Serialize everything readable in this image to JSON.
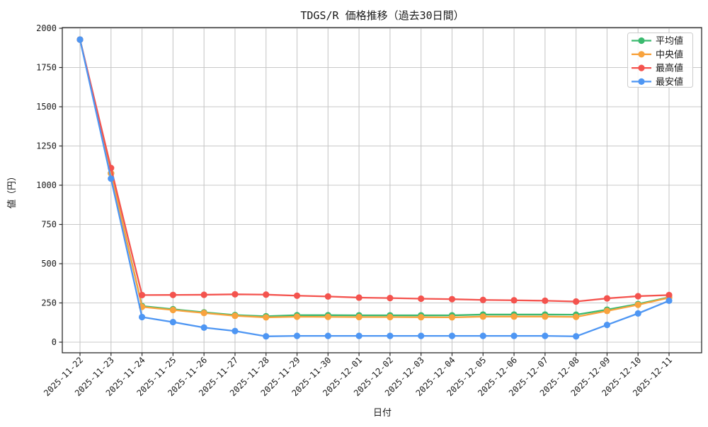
{
  "chart_data": {
    "type": "line",
    "title": "TDGS/R 価格推移（過去30日間）",
    "xlabel": "日付",
    "ylabel": "値（円）",
    "categories": [
      "2025-11-22",
      "2025-11-23",
      "2025-11-24",
      "2025-11-25",
      "2025-11-26",
      "2025-11-27",
      "2025-11-28",
      "2025-11-29",
      "2025-11-30",
      "2025-12-01",
      "2025-12-02",
      "2025-12-03",
      "2025-12-04",
      "2025-12-05",
      "2025-12-06",
      "2025-12-07",
      "2025-12-08",
      "2025-12-09",
      "2025-12-10",
      "2025-12-11"
    ],
    "series": [
      {
        "name": "平均値",
        "color": "#3bba6f",
        "values": [
          1928,
          1076,
          230,
          210,
          190,
          173,
          165,
          172,
          172,
          171,
          171,
          171,
          171,
          176,
          176,
          176,
          175,
          207,
          243,
          286
        ]
      },
      {
        "name": "中央値",
        "color": "#f8a33e",
        "values": [
          1928,
          1076,
          225,
          205,
          186,
          168,
          158,
          162,
          161,
          160,
          160,
          159,
          158,
          163,
          163,
          163,
          161,
          199,
          238,
          283
        ]
      },
      {
        "name": "最高値",
        "color": "#f4534e",
        "values": [
          1928,
          1110,
          300,
          301,
          302,
          305,
          303,
          296,
          291,
          284,
          281,
          277,
          274,
          269,
          267,
          264,
          259,
          279,
          293,
          300
        ]
      },
      {
        "name": "最安値",
        "color": "#4e96f3",
        "values": [
          1928,
          1042,
          160,
          128,
          93,
          71,
          37,
          40,
          40,
          40,
          40,
          40,
          40,
          40,
          40,
          40,
          37,
          110,
          183,
          264
        ]
      }
    ],
    "yticks": [
      0,
      250,
      500,
      750,
      1000,
      1250,
      1500,
      1750,
      2000
    ],
    "ylim": [
      -68,
      2000
    ],
    "grid": true,
    "legend_position": "upper-right"
  },
  "colors": {
    "grid": "#c8c8c8",
    "spine": "#2b2b2b",
    "tick": "#2b2b2b",
    "legend_border": "#cccccc",
    "background": "#ffffff"
  }
}
